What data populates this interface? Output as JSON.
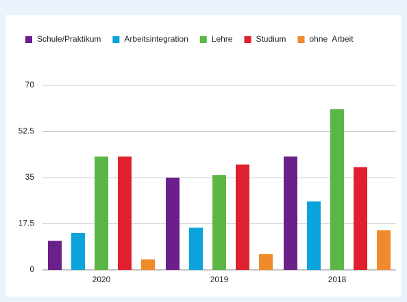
{
  "chart_data": {
    "type": "bar",
    "categories": [
      "2020",
      "2019",
      "2018"
    ],
    "series": [
      {
        "name": "Schule/Praktikum",
        "color": "#6b1f8a",
        "values": [
          11,
          35,
          43
        ]
      },
      {
        "name": "Arbeitsintegration",
        "color": "#0aa3dc",
        "values": [
          14,
          16,
          26
        ]
      },
      {
        "name": "Lehre",
        "color": "#5cb646",
        "values": [
          43,
          36,
          61
        ]
      },
      {
        "name": "Studium",
        "color": "#e0202e",
        "values": [
          43,
          40,
          39
        ]
      },
      {
        "name": "ohne  Arbeit",
        "color": "#f08a2a",
        "values": [
          4,
          6,
          15
        ]
      }
    ],
    "ylim": [
      0,
      70
    ],
    "yticks": [
      0,
      17.5,
      35,
      52.5,
      70
    ],
    "grid": true,
    "legend": "top"
  }
}
